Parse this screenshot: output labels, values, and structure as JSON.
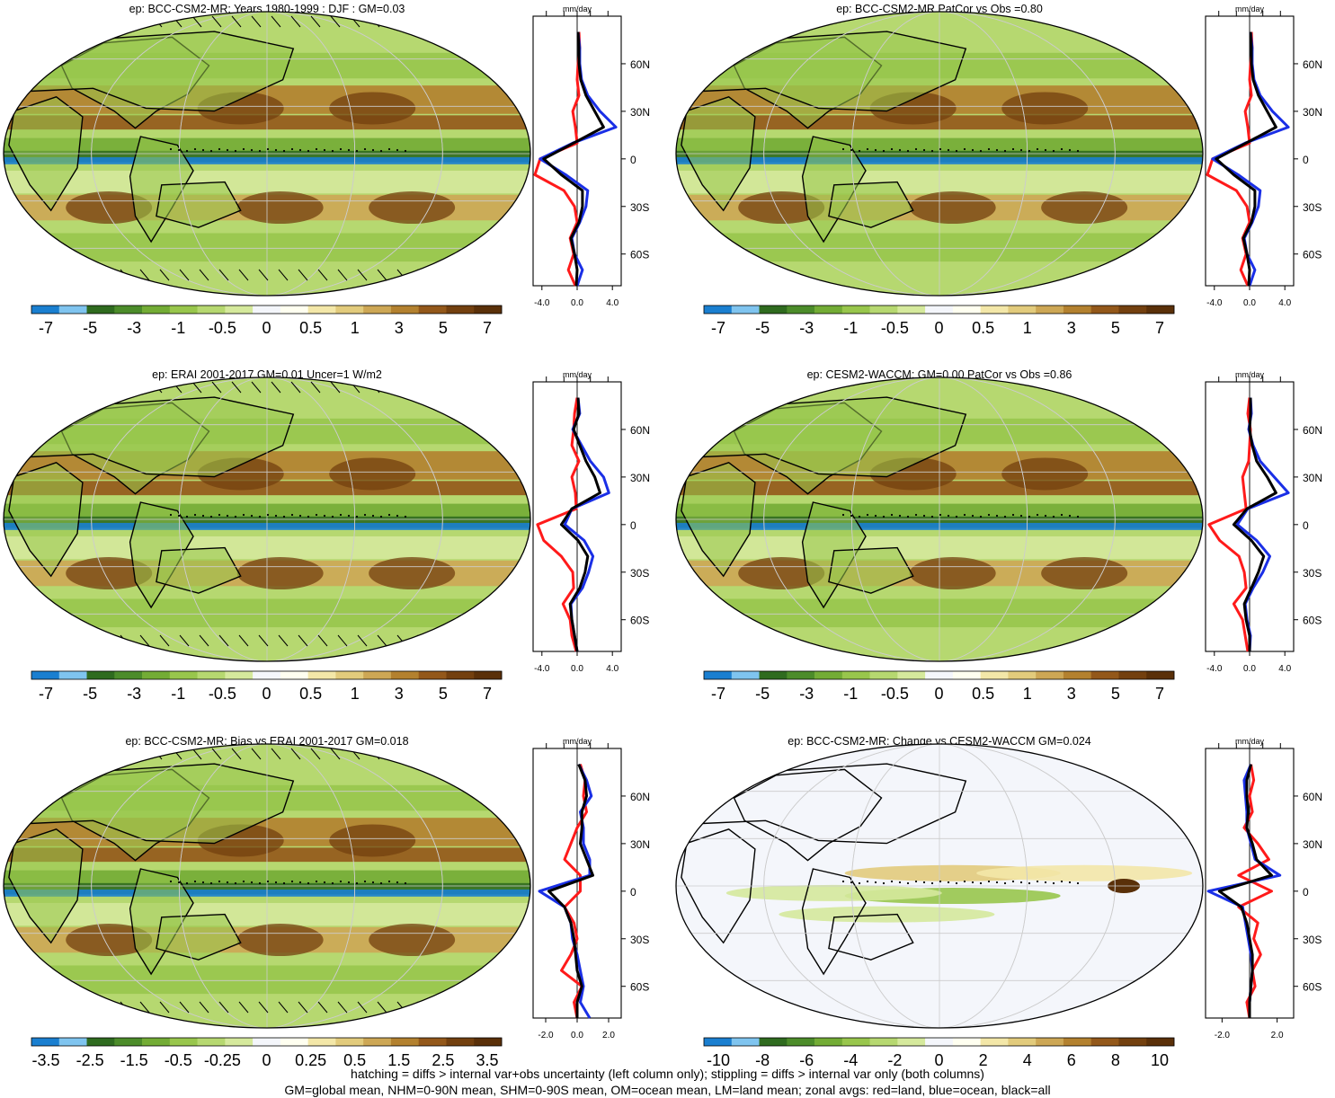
{
  "colors": {
    "scale": [
      "#1a7fd0",
      "#7fc4ef",
      "#2f6b1f",
      "#4c8c2a",
      "#73ac35",
      "#98c64c",
      "#b6d870",
      "#d5e99c",
      "#f4f6fb",
      "#fffff0",
      "#f3e7a8",
      "#e2cb7c",
      "#cda755",
      "#b3812f",
      "#93581a",
      "#73400f",
      "#5a3009"
    ],
    "land_line": "#ff1a1a",
    "ocean_line": "#1a2fe6",
    "all_line": "#000000",
    "grid": "#cccccc"
  },
  "zonal": {
    "unit": "mm/day",
    "lat_ticks": [
      "60N",
      "30N",
      "0",
      "30S",
      "60S"
    ]
  },
  "chart_data": [
    {
      "type": "heatmap",
      "title": "ep: BCC-CSM2-MR: Years 1980-1999 : DJF : GM=0.03",
      "colorbar_labels": [
        "-7",
        "-5",
        "-3",
        "-1",
        "-0.5",
        "0",
        "0.5",
        "1",
        "3",
        "5",
        "7"
      ],
      "zonal_xticks": [
        "-4.0",
        "0.0",
        "4.0"
      ],
      "zonal_xlim": [
        -5,
        5
      ],
      "hatching": true,
      "lat": [
        80,
        70,
        60,
        50,
        40,
        30,
        20,
        10,
        0,
        -10,
        -20,
        -30,
        -40,
        -50,
        -60,
        -70,
        -80
      ],
      "zonal_mean": {
        "land": [
          0.2,
          0.3,
          0.1,
          0.0,
          0.2,
          -0.5,
          -0.2,
          0.0,
          -4.2,
          -4.8,
          -1.5,
          -0.3,
          0.0,
          -0.8,
          -0.4,
          -1.0,
          -0.2
        ],
        "ocean": [
          0.1,
          0.3,
          0.3,
          0.5,
          1.2,
          2.6,
          4.4,
          -0.5,
          -4.2,
          -1.3,
          1.2,
          1.0,
          0.3,
          -0.6,
          -0.3,
          0.6,
          0.0
        ],
        "all": [
          0.1,
          0.2,
          0.2,
          0.4,
          1.0,
          2.0,
          3.0,
          -0.4,
          -3.8,
          -1.8,
          0.6,
          0.6,
          0.2,
          -0.7,
          -0.3,
          0.0,
          -0.1
        ]
      }
    },
    {
      "type": "heatmap",
      "title": "ep: BCC-CSM2-MR PatCor vs Obs =0.80",
      "colorbar_labels": [
        "-7",
        "-5",
        "-3",
        "-1",
        "-0.5",
        "0",
        "0.5",
        "1",
        "3",
        "5",
        "7"
      ],
      "zonal_xticks": [
        "-4.0",
        "0.0",
        "4.0"
      ],
      "zonal_xlim": [
        -5,
        5
      ],
      "hatching": false,
      "lat": [
        80,
        70,
        60,
        50,
        40,
        30,
        20,
        10,
        0,
        -10,
        -20,
        -30,
        -40,
        -50,
        -60,
        -70,
        -80
      ],
      "zonal_mean": {
        "land": [
          0.2,
          0.3,
          0.1,
          0.0,
          0.2,
          -0.5,
          -0.2,
          0.0,
          -4.2,
          -4.8,
          -1.5,
          -0.3,
          0.0,
          -0.8,
          -0.4,
          -1.0,
          -0.2
        ],
        "ocean": [
          0.1,
          0.3,
          0.3,
          0.5,
          1.2,
          2.6,
          4.4,
          -0.5,
          -4.2,
          -1.3,
          1.2,
          1.0,
          0.3,
          -0.6,
          -0.3,
          0.6,
          0.0
        ],
        "all": [
          0.1,
          0.2,
          0.2,
          0.4,
          1.0,
          2.0,
          3.0,
          -0.4,
          -3.8,
          -1.8,
          0.6,
          0.6,
          0.2,
          -0.7,
          -0.3,
          0.0,
          -0.1
        ]
      }
    },
    {
      "type": "heatmap",
      "title": "ep: ERAI 2001-2017 GM=0.01 Uncer=1 W/m2",
      "colorbar_labels": [
        "-7",
        "-5",
        "-3",
        "-1",
        "-0.5",
        "0",
        "0.5",
        "1",
        "3",
        "5",
        "7"
      ],
      "zonal_xticks": [
        "-4.0",
        "0.0",
        "4.0"
      ],
      "zonal_xlim": [
        -5,
        5
      ],
      "hatching": true,
      "lat": [
        80,
        70,
        60,
        50,
        40,
        30,
        20,
        10,
        0,
        -10,
        -20,
        -30,
        -40,
        -50,
        -60,
        -70,
        -80
      ],
      "zonal_mean": {
        "land": [
          0.0,
          -0.3,
          -0.4,
          -0.6,
          0.2,
          -0.6,
          -0.2,
          -0.1,
          -4.5,
          -3.8,
          -1.8,
          -0.5,
          -0.4,
          -1.6,
          -0.8,
          -0.6,
          -0.1
        ],
        "ocean": [
          0.1,
          0.3,
          -0.5,
          0.5,
          1.5,
          3.0,
          3.6,
          -0.6,
          -1.4,
          0.8,
          1.8,
          1.3,
          0.6,
          -0.7,
          -0.6,
          -0.3,
          0.0
        ],
        "all": [
          0.1,
          0.2,
          -0.4,
          0.3,
          1.0,
          2.0,
          2.6,
          -0.6,
          -1.8,
          0.1,
          1.2,
          0.9,
          0.3,
          -0.8,
          -0.6,
          -0.3,
          0.0
        ]
      }
    },
    {
      "type": "heatmap",
      "title": "ep: CESM2-WACCM: GM=0.00 PatCor vs Obs =0.86",
      "colorbar_labels": [
        "-7",
        "-5",
        "-3",
        "-1",
        "-0.5",
        "0",
        "0.5",
        "1",
        "3",
        "5",
        "7"
      ],
      "zonal_xticks": [
        "-4.0",
        "0.0",
        "4.0"
      ],
      "zonal_xlim": [
        -5,
        5
      ],
      "hatching": false,
      "lat": [
        80,
        70,
        60,
        50,
        40,
        30,
        20,
        10,
        0,
        -10,
        -20,
        -30,
        -40,
        -50,
        -60,
        -70,
        -80
      ],
      "zonal_mean": {
        "land": [
          0.0,
          -0.2,
          0.1,
          0.0,
          -0.1,
          -0.8,
          -0.6,
          -0.4,
          -4.6,
          -3.4,
          -1.2,
          -0.6,
          -0.4,
          -1.8,
          -0.8,
          -0.5,
          -0.2
        ],
        "ocean": [
          0.1,
          0.2,
          -0.1,
          0.4,
          1.2,
          2.8,
          4.4,
          -0.2,
          -1.4,
          0.8,
          2.3,
          1.5,
          0.4,
          -0.5,
          -0.3,
          0.1,
          0.0
        ],
        "all": [
          0.1,
          0.1,
          0.0,
          0.3,
          0.8,
          2.0,
          3.0,
          -0.3,
          -1.8,
          0.2,
          1.6,
          1.0,
          0.2,
          -0.6,
          -0.4,
          0.0,
          0.0
        ]
      }
    },
    {
      "type": "heatmap",
      "title": "ep: BCC-CSM2-MR: Bias vs ERAI 2001-2017 GM=0.018",
      "colorbar_labels": [
        "-3.5",
        "-2.5",
        "-1.5",
        "-0.5",
        "-0.25",
        "0",
        "0.25",
        "0.5",
        "1.5",
        "2.5",
        "3.5"
      ],
      "zonal_xticks": [
        "-2.0",
        "0.0",
        "2.0"
      ],
      "zonal_xlim": [
        -2.8,
        2.8
      ],
      "hatching": true,
      "lat": [
        80,
        70,
        60,
        50,
        40,
        30,
        20,
        10,
        0,
        -10,
        -20,
        -30,
        -40,
        -50,
        -60,
        -70,
        -80
      ],
      "zonal_mean": {
        "land": [
          0.2,
          0.5,
          0.4,
          0.6,
          0.0,
          -0.4,
          -0.8,
          0.2,
          0.2,
          -0.8,
          -0.2,
          0.0,
          -0.4,
          -1.0,
          0.3,
          -0.2,
          0.0
        ],
        "ocean": [
          0.1,
          0.6,
          0.9,
          0.2,
          0.4,
          0.4,
          0.8,
          0.8,
          -2.4,
          -0.8,
          -0.4,
          -0.3,
          0.0,
          0.2,
          0.4,
          0.2,
          0.8
        ],
        "all": [
          0.1,
          0.5,
          0.6,
          0.3,
          0.3,
          0.2,
          0.6,
          1.0,
          -1.8,
          -0.8,
          -0.4,
          -0.2,
          -0.1,
          0.0,
          0.3,
          0.0,
          0.0
        ]
      }
    },
    {
      "type": "heatmap",
      "title": "ep: BCC-CSM2-MR: Change vs CESM2-WACCM GM=0.024",
      "colorbar_labels": [
        "-10",
        "-8",
        "-6",
        "-4",
        "-2",
        "0",
        "2",
        "4",
        "6",
        "8",
        "10"
      ],
      "zonal_xticks": [
        "-2.0",
        "2.0"
      ],
      "zonal_xlim": [
        -3.2,
        3.2
      ],
      "hatching": false,
      "lat": [
        80,
        70,
        60,
        50,
        40,
        30,
        20,
        10,
        0,
        -10,
        -20,
        -30,
        -40,
        -50,
        -60,
        -70,
        -80
      ],
      "zonal_mean": {
        "land": [
          0.1,
          0.3,
          0.0,
          0.2,
          -0.4,
          0.6,
          1.4,
          -0.8,
          1.6,
          -0.8,
          0.6,
          0.3,
          0.8,
          0.2,
          0.4,
          -0.2,
          0.0
        ],
        "ocean": [
          0.1,
          -0.4,
          -0.3,
          -0.2,
          -0.2,
          0.1,
          0.4,
          2.2,
          -3.0,
          -0.5,
          -0.3,
          -0.1,
          0.1,
          0.2,
          0.1,
          0.0,
          0.0
        ],
        "all": [
          0.1,
          -0.2,
          -0.2,
          -0.1,
          -0.2,
          0.2,
          0.5,
          1.6,
          -2.2,
          -0.6,
          -0.2,
          0.0,
          0.2,
          0.2,
          0.1,
          0.0,
          0.0
        ]
      }
    }
  ],
  "footer": {
    "line1": "hatching = diffs > internal var+obs uncertainty (left column only); stippling = diffs > internal var only (both columns)",
    "line2": "GM=global mean, NHM=0-90N mean, SHM=0-90S mean, OM=ocean mean, LM=land mean; zonal avgs: red=land, blue=ocean, black=all"
  }
}
